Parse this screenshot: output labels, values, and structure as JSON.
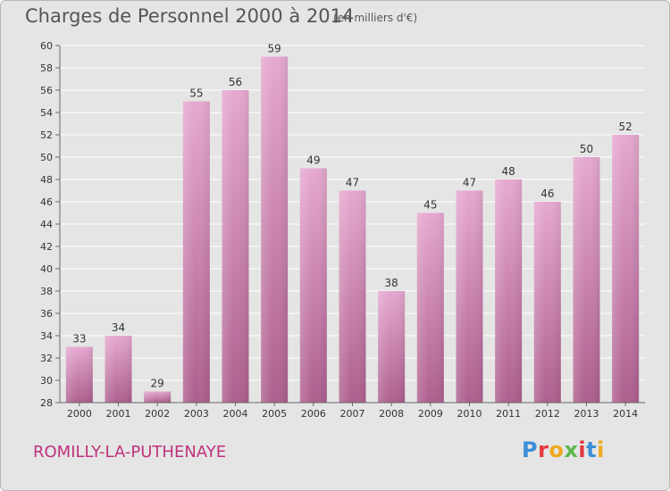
{
  "header": {
    "title": "Charges de Personnel 2000 à 2014",
    "subtitle": "(en milliers d'€)"
  },
  "footer": {
    "commune": "ROMILLY-LA-PUTHENAYE",
    "logo": "Proxiti",
    "logo_colors": [
      "#3b8fd6",
      "#e4373d",
      "#f0a81f",
      "#5bb84a",
      "#e4373d",
      "#3b8fd6",
      "#f0a81f"
    ]
  },
  "chart_data": {
    "type": "bar",
    "title": "Charges de Personnel 2000 à 2014",
    "subtitle": "(en milliers d'€)",
    "xlabel": "",
    "ylabel": "",
    "categories": [
      "2000",
      "2001",
      "2002",
      "2003",
      "2004",
      "2005",
      "2006",
      "2007",
      "2008",
      "2009",
      "2010",
      "2011",
      "2012",
      "2013",
      "2014"
    ],
    "values": [
      33,
      34,
      29,
      55,
      56,
      59,
      49,
      47,
      38,
      45,
      47,
      48,
      46,
      50,
      52
    ],
    "ylim": [
      28,
      60
    ],
    "yticks": [
      28,
      30,
      32,
      34,
      36,
      38,
      40,
      42,
      44,
      46,
      48,
      50,
      52,
      54,
      56,
      58,
      60
    ],
    "grid": true,
    "legend": "none",
    "bar_color_top": "#e6a8d0",
    "bar_color_bottom": "#ad5f8e",
    "grid_color": "#ffffff",
    "axis_color": "#666666",
    "label_color": "#333333"
  }
}
